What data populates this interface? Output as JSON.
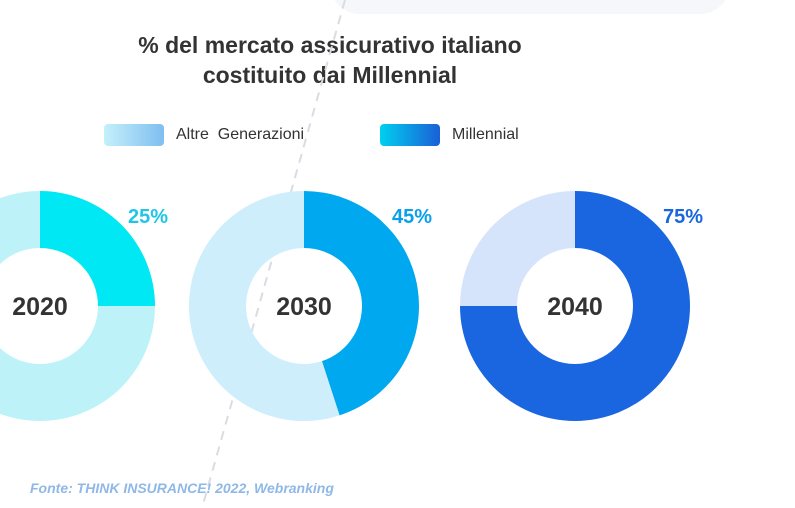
{
  "chart_data": {
    "type": "pie",
    "title_line1": "% del mercato assicurativo italiano",
    "title_line2": "costituito dai Millennial",
    "legend": [
      {
        "label": "Altre  Generazioni",
        "color_start": "#c5f0fb",
        "color_end": "#7fbef0"
      },
      {
        "label": "Millennial",
        "color_start": "#00d0f0",
        "color_end": "#1a5fd6"
      }
    ],
    "charts": [
      {
        "year": "2020",
        "millennial": 25,
        "altre": 75,
        "label": "25%",
        "color_mill": "#00e8f4",
        "color_altre": "#bdf3f8",
        "label_color": "#1fc6e6"
      },
      {
        "year": "2030",
        "millennial": 45,
        "altre": 55,
        "label": "45%",
        "color_mill": "#00a8ef",
        "color_altre": "#cfeefb",
        "label_color": "#0aa0ea"
      },
      {
        "year": "2040",
        "millennial": 75,
        "altre": 25,
        "label": "75%",
        "color_mill": "#1a66e0",
        "color_altre": "#d5e4fb",
        "label_color": "#1a66e0"
      }
    ]
  },
  "source": "Fonte: THINK INSURANCE! 2022, Webranking"
}
